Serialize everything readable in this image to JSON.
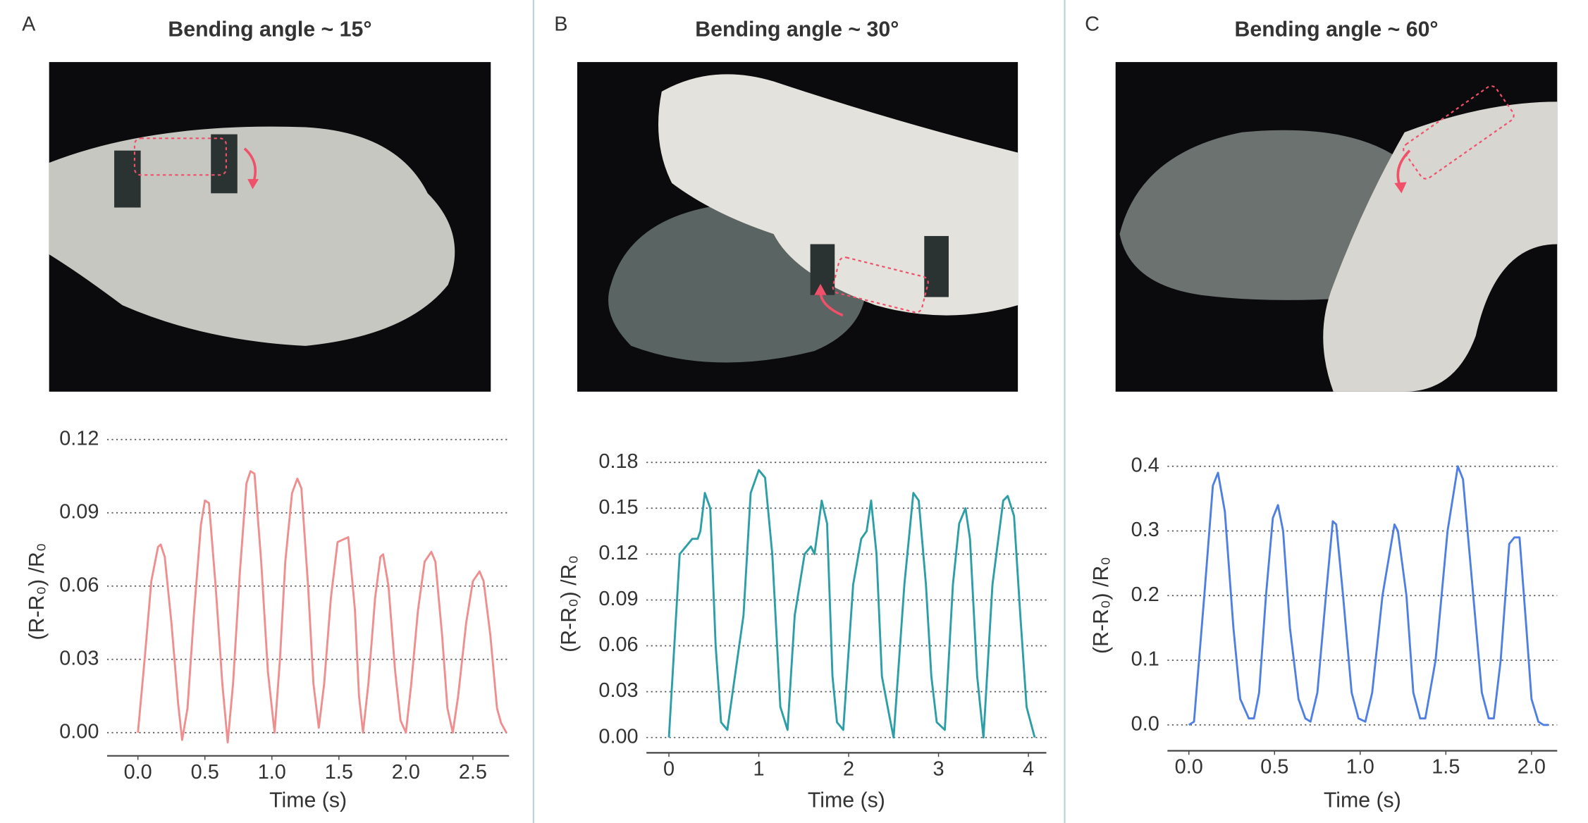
{
  "chart_data": [
    {
      "type": "line",
      "label": "A",
      "title": "Bending angle ~ 15°",
      "xlabel": "Time (s)",
      "ylabel": "(R-R₀) /R₀",
      "color": "#ef8e8e",
      "grid": true,
      "xlim": [
        -0.23,
        2.77
      ],
      "ylim": [
        -0.0095,
        0.125
      ],
      "xticks": [
        {
          "value": 0,
          "label": "0.0"
        },
        0.5,
        {
          "value": 1,
          "label": "1.0"
        },
        1.5,
        {
          "value": 2,
          "label": "2.0"
        },
        2.5
      ],
      "yticks": [
        {
          "value": 0,
          "label": "0.00"
        },
        {
          "value": 0.03,
          "label": "0.03"
        },
        {
          "value": 0.06,
          "label": "0.06"
        },
        {
          "value": 0.09,
          "label": "0.09"
        },
        {
          "value": 0.12,
          "label": "0.12"
        }
      ],
      "x": [
        0,
        0.05,
        0.1,
        0.15,
        0.17,
        0.2,
        0.25,
        0.3,
        0.33,
        0.37,
        0.42,
        0.47,
        0.5,
        0.53,
        0.58,
        0.63,
        0.67,
        0.71,
        0.76,
        0.81,
        0.84,
        0.87,
        0.92,
        0.97,
        1.02,
        1.06,
        1.1,
        1.15,
        1.19,
        1.22,
        1.27,
        1.31,
        1.35,
        1.39,
        1.44,
        1.49,
        1.53,
        1.57,
        1.62,
        1.65,
        1.68,
        1.72,
        1.77,
        1.81,
        1.83,
        1.87,
        1.92,
        1.96,
        2.0,
        2.04,
        2.09,
        2.14,
        2.19,
        2.22,
        2.27,
        2.31,
        2.35,
        2.39,
        2.45,
        2.5,
        2.55,
        2.58,
        2.63,
        2.68,
        2.71,
        2.75
      ],
      "values": [
        0,
        0.03,
        0.062,
        0.076,
        0.077,
        0.072,
        0.045,
        0.012,
        -0.003,
        0.01,
        0.05,
        0.085,
        0.095,
        0.094,
        0.06,
        0.02,
        -0.004,
        0.02,
        0.065,
        0.102,
        0.107,
        0.106,
        0.07,
        0.025,
        0.0,
        0.03,
        0.07,
        0.098,
        0.104,
        0.1,
        0.06,
        0.02,
        0.002,
        0.02,
        0.055,
        0.078,
        0.079,
        0.08,
        0.05,
        0.015,
        0.0,
        0.02,
        0.055,
        0.072,
        0.073,
        0.06,
        0.025,
        0.005,
        0.0,
        0.02,
        0.05,
        0.07,
        0.074,
        0.07,
        0.04,
        0.01,
        0.0,
        0.015,
        0.045,
        0.062,
        0.066,
        0.062,
        0.04,
        0.01,
        0.004,
        0.0
      ]
    },
    {
      "type": "line",
      "label": "B",
      "title": "Bending angle ~ 30°",
      "xlabel": "Time (s)",
      "ylabel": "(R-R₀) /R₀",
      "color": "#2c9ea6",
      "grid": true,
      "xlim": [
        -0.25,
        4.2
      ],
      "ylim": [
        -0.01,
        0.185
      ],
      "xticks": [
        0,
        1,
        2,
        3,
        4
      ],
      "yticks": [
        {
          "value": 0,
          "label": "0.00"
        },
        {
          "value": 0.03,
          "label": "0.03"
        },
        {
          "value": 0.06,
          "label": "0.06"
        },
        {
          "value": 0.09,
          "label": "0.09"
        },
        {
          "value": 0.12,
          "label": "0.12"
        },
        {
          "value": 0.15,
          "label": "0.15"
        },
        {
          "value": 0.18,
          "label": "0.18"
        }
      ],
      "x": [
        0,
        0.12,
        0.26,
        0.32,
        0.35,
        0.4,
        0.46,
        0.52,
        0.58,
        0.65,
        0.83,
        0.91,
        1.0,
        1.07,
        1.15,
        1.24,
        1.32,
        1.4,
        1.51,
        1.58,
        1.62,
        1.7,
        1.76,
        1.82,
        1.87,
        1.94,
        2.05,
        2.14,
        2.2,
        2.25,
        2.31,
        2.37,
        2.45,
        2.5,
        2.62,
        2.72,
        2.78,
        2.86,
        2.92,
        2.98,
        3.07,
        3.16,
        3.23,
        3.3,
        3.35,
        3.43,
        3.5,
        3.6,
        3.72,
        3.77,
        3.84,
        3.91,
        3.98,
        4.07
      ],
      "values": [
        0,
        0.12,
        0.13,
        0.13,
        0.135,
        0.16,
        0.15,
        0.06,
        0.01,
        0.005,
        0.08,
        0.16,
        0.175,
        0.17,
        0.12,
        0.02,
        0.005,
        0.08,
        0.12,
        0.125,
        0.12,
        0.155,
        0.14,
        0.04,
        0.01,
        0.005,
        0.1,
        0.13,
        0.135,
        0.155,
        0.12,
        0.04,
        0.015,
        0.0,
        0.1,
        0.16,
        0.155,
        0.1,
        0.04,
        0.01,
        0.005,
        0.1,
        0.14,
        0.15,
        0.13,
        0.04,
        0.0,
        0.1,
        0.155,
        0.158,
        0.145,
        0.08,
        0.02,
        0.0
      ]
    },
    {
      "type": "line",
      "label": "C",
      "title": "Bending angle ~ 60°",
      "xlabel": "Time (s)",
      "ylabel": "(R-R₀) /R₀",
      "color": "#4f7fe3",
      "grid": true,
      "xlim": [
        -0.125,
        2.15
      ],
      "ylim": [
        -0.04,
        0.41
      ],
      "xticks": [
        {
          "value": 0,
          "label": "0.0"
        },
        0.5,
        {
          "value": 1,
          "label": "1.0"
        },
        1.5,
        {
          "value": 2,
          "label": "2.0"
        }
      ],
      "yticks": [
        {
          "value": 0,
          "label": "0.0"
        },
        0.1,
        0.2,
        0.3,
        0.4
      ],
      "x": [
        0,
        0.03,
        0.09,
        0.14,
        0.17,
        0.21,
        0.26,
        0.3,
        0.35,
        0.38,
        0.41,
        0.45,
        0.49,
        0.52,
        0.55,
        0.59,
        0.64,
        0.68,
        0.71,
        0.75,
        0.8,
        0.84,
        0.86,
        0.9,
        0.95,
        0.99,
        1.03,
        1.07,
        1.13,
        1.2,
        1.22,
        1.27,
        1.31,
        1.35,
        1.38,
        1.44,
        1.51,
        1.57,
        1.6,
        1.66,
        1.71,
        1.75,
        1.78,
        1.82,
        1.87,
        1.9,
        1.93,
        1.97,
        2.0,
        2.04,
        2.07,
        2.1
      ],
      "values": [
        0,
        0.005,
        0.2,
        0.37,
        0.39,
        0.33,
        0.15,
        0.04,
        0.01,
        0.01,
        0.05,
        0.2,
        0.32,
        0.34,
        0.3,
        0.15,
        0.04,
        0.01,
        0.005,
        0.05,
        0.2,
        0.315,
        0.31,
        0.2,
        0.05,
        0.01,
        0.005,
        0.05,
        0.2,
        0.31,
        0.3,
        0.2,
        0.05,
        0.01,
        0.01,
        0.1,
        0.3,
        0.4,
        0.38,
        0.2,
        0.05,
        0.01,
        0.01,
        0.1,
        0.28,
        0.29,
        0.29,
        0.15,
        0.04,
        0.005,
        0,
        0
      ]
    }
  ]
}
